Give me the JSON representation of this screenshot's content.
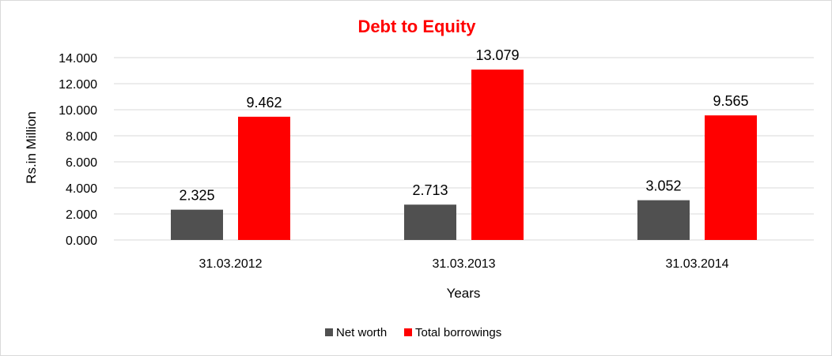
{
  "chart_data": {
    "type": "bar",
    "title": "Debt to Equity",
    "xlabel": "Years",
    "ylabel": "Rs.in Million",
    "categories": [
      "31.03.2012",
      "31.03.2013",
      "31.03.2014"
    ],
    "series": [
      {
        "name": "Net worth",
        "values": [
          2.325,
          2.713,
          3.052
        ],
        "labels": [
          "2.325",
          "2.713",
          "3.052"
        ],
        "color": "#505050"
      },
      {
        "name": "Total borrowings",
        "values": [
          9.462,
          13.079,
          9.565
        ],
        "labels": [
          "9.462",
          "13.079",
          "9.565"
        ],
        "color": "#ff0000"
      }
    ],
    "ylim": [
      0,
      14
    ],
    "yticks": [
      0,
      2,
      4,
      6,
      8,
      10,
      12,
      14
    ],
    "ytick_labels": [
      "0.000",
      "2.000",
      "4.000",
      "6.000",
      "8.000",
      "10.000",
      "12.000",
      "14.000"
    ],
    "grid": true,
    "legend_position": "bottom",
    "title_color": "#ff0000",
    "gridline_color": "#d9d9d9"
  }
}
